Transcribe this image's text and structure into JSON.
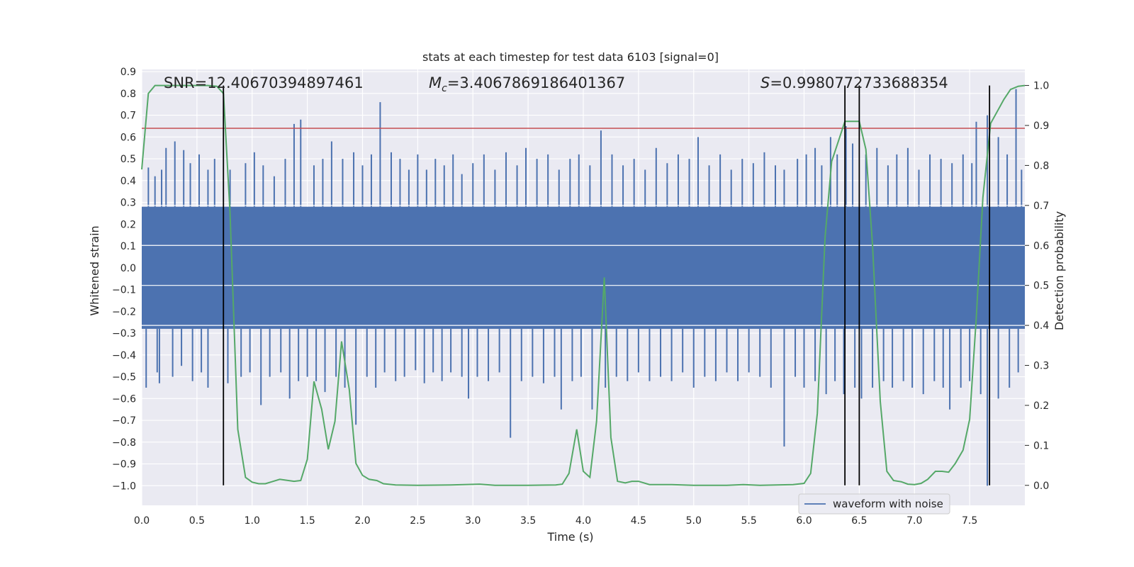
{
  "chart_data": {
    "type": "line",
    "title": "stats at each timestep for test data 6103 [signal=0]",
    "xlabel": "Time (s)",
    "ylabel": "Whitened strain",
    "y2label": "Detection probability",
    "xlim": [
      0,
      8
    ],
    "ylim": [
      -1.09,
      0.91
    ],
    "y2lim": [
      -0.05,
      1.04
    ],
    "xticks": [
      0.0,
      0.5,
      1.0,
      1.5,
      2.0,
      2.5,
      3.0,
      3.5,
      4.0,
      4.5,
      5.0,
      5.5,
      6.0,
      6.5,
      7.0,
      7.5
    ],
    "xtick_labels": [
      "0.0",
      "0.5",
      "1.0",
      "1.5",
      "2.0",
      "2.5",
      "3.0",
      "3.5",
      "4.0",
      "4.5",
      "5.0",
      "5.5",
      "6.0",
      "6.5",
      "7.0",
      "7.5"
    ],
    "yticks": [
      0.9,
      0.8,
      0.7,
      0.6,
      0.5,
      0.4,
      0.3,
      0.2,
      0.1,
      0.0,
      -0.1,
      -0.2,
      -0.3,
      -0.4,
      -0.5,
      -0.6,
      -0.7,
      -0.8,
      -0.9,
      -1.0
    ],
    "ytick_labels": [
      "0.9",
      "0.8",
      "0.7",
      "0.6",
      "0.5",
      "0.4",
      "0.3",
      "0.2",
      "0.1",
      "0.0",
      "−0.1",
      "−0.2",
      "−0.3",
      "−0.4",
      "−0.5",
      "−0.6",
      "−0.7",
      "−0.8",
      "−0.9",
      "−1.0"
    ],
    "y2ticks": [
      1.0,
      0.9,
      0.8,
      0.7,
      0.6,
      0.5,
      0.4,
      0.3,
      0.2,
      0.1,
      0.0
    ],
    "y2tick_labels": [
      "1.0",
      "0.9",
      "0.8",
      "0.7",
      "0.6",
      "0.5",
      "0.4",
      "0.3",
      "0.2",
      "0.1",
      "0.0"
    ],
    "grid": true,
    "legend": {
      "location": "lower-right",
      "entries": [
        "waveform with noise"
      ]
    },
    "annotations": {
      "snr_text": "SNR=12.40670394897461",
      "mc_prefix": "M",
      "mc_sub": "c",
      "mc_value": "=3.4067869186401367",
      "s_prefix": "S",
      "s_value": "=0.9980772733688354"
    },
    "threshold_line": {
      "y": 0.64,
      "color": "#c44e52"
    },
    "vertical_markers": [
      0.74,
      6.37,
      6.5,
      7.68
    ],
    "series": [
      {
        "name": "waveform with noise",
        "color": "#4c72b0",
        "envelope": {
          "upper": 0.28,
          "lower": -0.28
        },
        "spikes": [
          [
            0.06,
            0.46
          ],
          [
            0.12,
            0.42
          ],
          [
            0.18,
            0.45
          ],
          [
            0.22,
            0.55
          ],
          [
            0.3,
            0.58
          ],
          [
            0.38,
            0.54
          ],
          [
            0.44,
            0.48
          ],
          [
            0.52,
            0.52
          ],
          [
            0.6,
            0.45
          ],
          [
            0.66,
            0.5
          ],
          [
            0.8,
            0.45
          ],
          [
            0.94,
            0.48
          ],
          [
            1.02,
            0.53
          ],
          [
            1.1,
            0.47
          ],
          [
            1.2,
            0.42
          ],
          [
            1.3,
            0.5
          ],
          [
            1.38,
            0.66
          ],
          [
            1.44,
            0.68
          ],
          [
            1.56,
            0.47
          ],
          [
            1.64,
            0.5
          ],
          [
            1.72,
            0.58
          ],
          [
            1.82,
            0.5
          ],
          [
            1.92,
            0.53
          ],
          [
            2.0,
            0.47
          ],
          [
            2.08,
            0.52
          ],
          [
            2.16,
            0.76
          ],
          [
            2.26,
            0.53
          ],
          [
            2.34,
            0.5
          ],
          [
            2.42,
            0.45
          ],
          [
            2.5,
            0.52
          ],
          [
            2.58,
            0.45
          ],
          [
            2.66,
            0.5
          ],
          [
            2.74,
            0.47
          ],
          [
            2.82,
            0.52
          ],
          [
            2.9,
            0.43
          ],
          [
            3.0,
            0.48
          ],
          [
            3.1,
            0.52
          ],
          [
            3.2,
            0.45
          ],
          [
            3.3,
            0.53
          ],
          [
            3.4,
            0.47
          ],
          [
            3.48,
            0.55
          ],
          [
            3.58,
            0.5
          ],
          [
            3.68,
            0.52
          ],
          [
            3.78,
            0.45
          ],
          [
            3.88,
            0.5
          ],
          [
            3.96,
            0.52
          ],
          [
            4.06,
            0.47
          ],
          [
            4.16,
            0.63
          ],
          [
            4.26,
            0.52
          ],
          [
            4.36,
            0.47
          ],
          [
            4.46,
            0.5
          ],
          [
            4.56,
            0.45
          ],
          [
            4.66,
            0.55
          ],
          [
            4.76,
            0.48
          ],
          [
            4.86,
            0.52
          ],
          [
            4.96,
            0.5
          ],
          [
            5.04,
            0.6
          ],
          [
            5.14,
            0.47
          ],
          [
            5.24,
            0.52
          ],
          [
            5.34,
            0.45
          ],
          [
            5.44,
            0.5
          ],
          [
            5.54,
            0.48
          ],
          [
            5.64,
            0.53
          ],
          [
            5.74,
            0.47
          ],
          [
            5.82,
            0.45
          ],
          [
            5.94,
            0.5
          ],
          [
            6.02,
            0.52
          ],
          [
            6.1,
            0.55
          ],
          [
            6.16,
            0.47
          ],
          [
            6.24,
            0.6
          ],
          [
            6.3,
            0.52
          ],
          [
            6.38,
            0.65
          ],
          [
            6.44,
            0.57
          ],
          [
            6.56,
            0.52
          ],
          [
            6.66,
            0.55
          ],
          [
            6.76,
            0.47
          ],
          [
            6.84,
            0.52
          ],
          [
            6.94,
            0.55
          ],
          [
            7.04,
            0.45
          ],
          [
            7.14,
            0.52
          ],
          [
            7.24,
            0.5
          ],
          [
            7.34,
            0.48
          ],
          [
            7.44,
            0.52
          ],
          [
            7.52,
            0.48
          ],
          [
            7.56,
            0.67
          ],
          [
            7.66,
            0.7
          ],
          [
            7.76,
            0.6
          ],
          [
            7.84,
            0.52
          ],
          [
            7.92,
            0.82
          ],
          [
            7.97,
            0.45
          ],
          [
            0.04,
            -0.55
          ],
          [
            0.14,
            -0.48
          ],
          [
            0.16,
            -0.53
          ],
          [
            0.28,
            -0.5
          ],
          [
            0.36,
            -0.45
          ],
          [
            0.46,
            -0.52
          ],
          [
            0.54,
            -0.48
          ],
          [
            0.6,
            -0.55
          ],
          [
            0.78,
            -0.53
          ],
          [
            0.9,
            -0.5
          ],
          [
            0.98,
            -0.48
          ],
          [
            1.08,
            -0.63
          ],
          [
            1.16,
            -0.5
          ],
          [
            1.26,
            -0.48
          ],
          [
            1.34,
            -0.6
          ],
          [
            1.42,
            -0.52
          ],
          [
            1.5,
            -0.5
          ],
          [
            1.58,
            -0.52
          ],
          [
            1.66,
            -0.57
          ],
          [
            1.76,
            -0.5
          ],
          [
            1.84,
            -0.55
          ],
          [
            1.94,
            -0.72
          ],
          [
            2.04,
            -0.5
          ],
          [
            2.12,
            -0.55
          ],
          [
            2.2,
            -0.48
          ],
          [
            2.3,
            -0.52
          ],
          [
            2.38,
            -0.5
          ],
          [
            2.48,
            -0.47
          ],
          [
            2.56,
            -0.53
          ],
          [
            2.64,
            -0.48
          ],
          [
            2.72,
            -0.52
          ],
          [
            2.8,
            -0.48
          ],
          [
            2.9,
            -0.5
          ],
          [
            2.96,
            -0.6
          ],
          [
            3.04,
            -0.5
          ],
          [
            3.14,
            -0.52
          ],
          [
            3.24,
            -0.48
          ],
          [
            3.34,
            -0.78
          ],
          [
            3.44,
            -0.52
          ],
          [
            3.54,
            -0.5
          ],
          [
            3.64,
            -0.53
          ],
          [
            3.74,
            -0.5
          ],
          [
            3.8,
            -0.65
          ],
          [
            3.9,
            -0.52
          ],
          [
            3.98,
            -0.5
          ],
          [
            4.08,
            -0.65
          ],
          [
            4.2,
            -0.55
          ],
          [
            4.3,
            -0.5
          ],
          [
            4.4,
            -0.52
          ],
          [
            4.5,
            -0.48
          ],
          [
            4.6,
            -0.52
          ],
          [
            4.7,
            -0.5
          ],
          [
            4.8,
            -0.52
          ],
          [
            4.9,
            -0.48
          ],
          [
            5.0,
            -0.55
          ],
          [
            5.1,
            -0.5
          ],
          [
            5.2,
            -0.52
          ],
          [
            5.3,
            -0.48
          ],
          [
            5.4,
            -0.52
          ],
          [
            5.5,
            -0.48
          ],
          [
            5.6,
            -0.5
          ],
          [
            5.7,
            -0.55
          ],
          [
            5.82,
            -0.82
          ],
          [
            5.92,
            -0.5
          ],
          [
            6.0,
            -0.55
          ],
          [
            6.1,
            -0.52
          ],
          [
            6.2,
            -0.58
          ],
          [
            6.28,
            -0.52
          ],
          [
            6.36,
            -0.58
          ],
          [
            6.46,
            -0.55
          ],
          [
            6.52,
            -0.6
          ],
          [
            6.62,
            -0.55
          ],
          [
            6.72,
            -0.52
          ],
          [
            6.8,
            -0.55
          ],
          [
            6.9,
            -0.52
          ],
          [
            6.98,
            -0.55
          ],
          [
            7.08,
            -0.58
          ],
          [
            7.18,
            -0.52
          ],
          [
            7.26,
            -0.55
          ],
          [
            7.32,
            -0.65
          ],
          [
            7.42,
            -0.55
          ],
          [
            7.5,
            -0.52
          ],
          [
            7.6,
            -0.58
          ],
          [
            7.66,
            -1.0
          ],
          [
            7.76,
            -0.6
          ],
          [
            7.86,
            -0.55
          ],
          [
            7.94,
            -0.48
          ]
        ]
      },
      {
        "name": "",
        "color": "#55a868",
        "axis": "right",
        "x": [
          0.0,
          0.06,
          0.12,
          0.2,
          0.3,
          0.4,
          0.5,
          0.6,
          0.68,
          0.74,
          0.8,
          0.87,
          0.94,
          1.0,
          1.06,
          1.12,
          1.25,
          1.38,
          1.44,
          1.5,
          1.56,
          1.63,
          1.69,
          1.75,
          1.81,
          1.88,
          1.94,
          2.0,
          2.06,
          2.13,
          2.19,
          2.3,
          2.5,
          2.8,
          3.06,
          3.2,
          3.5,
          3.75,
          3.81,
          3.87,
          3.94,
          4.0,
          4.06,
          4.12,
          4.19,
          4.25,
          4.31,
          4.38,
          4.44,
          4.5,
          4.6,
          4.8,
          5.0,
          5.3,
          5.45,
          5.6,
          5.9,
          6.0,
          6.06,
          6.12,
          6.19,
          6.25,
          6.31,
          6.37,
          6.44,
          6.5,
          6.56,
          6.62,
          6.69,
          6.75,
          6.81,
          6.88,
          6.94,
          7.0,
          7.06,
          7.12,
          7.19,
          7.25,
          7.31,
          7.37,
          7.44,
          7.5,
          7.56,
          7.62,
          7.69,
          7.75,
          7.81,
          7.87,
          7.94,
          8.0
        ],
        "y": [
          0.79,
          0.98,
          1.0,
          1.0,
          1.0,
          1.0,
          1.0,
          1.0,
          0.998,
          0.98,
          0.68,
          0.14,
          0.02,
          0.008,
          0.004,
          0.004,
          0.015,
          0.01,
          0.012,
          0.065,
          0.26,
          0.19,
          0.09,
          0.16,
          0.36,
          0.24,
          0.055,
          0.025,
          0.015,
          0.012,
          0.004,
          0.001,
          0.0,
          0.001,
          0.003,
          0.0,
          0.0,
          0.001,
          0.003,
          0.03,
          0.14,
          0.035,
          0.02,
          0.16,
          0.52,
          0.12,
          0.01,
          0.006,
          0.01,
          0.01,
          0.002,
          0.002,
          0.0,
          0.0,
          0.002,
          0.0,
          0.002,
          0.005,
          0.03,
          0.18,
          0.62,
          0.81,
          0.86,
          0.91,
          0.91,
          0.91,
          0.84,
          0.6,
          0.21,
          0.035,
          0.012,
          0.009,
          0.003,
          0.002,
          0.005,
          0.015,
          0.035,
          0.035,
          0.033,
          0.055,
          0.088,
          0.165,
          0.42,
          0.72,
          0.905,
          0.935,
          0.965,
          0.99,
          0.998,
          1.0
        ]
      }
    ]
  }
}
